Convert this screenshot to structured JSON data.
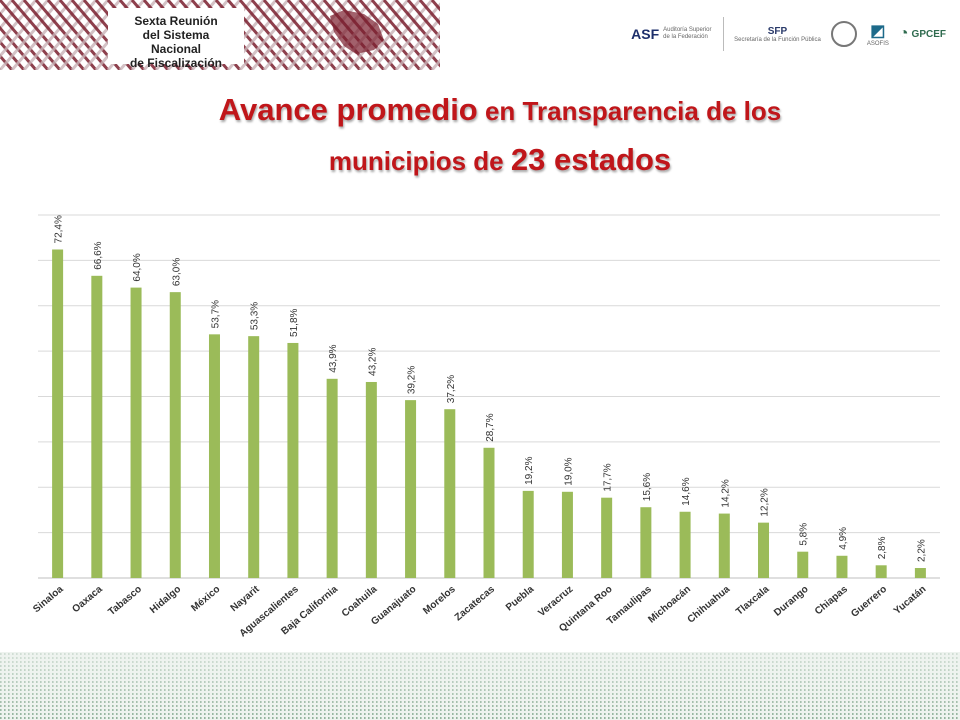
{
  "header": {
    "event_title_lines": [
      "Sexta Reunión",
      "del Sistema Nacional",
      "de Fiscalización"
    ],
    "logos": [
      {
        "name": "ASF",
        "tagline": "Auditoría Superior de la Federación"
      },
      {
        "name": "SFP",
        "tagline": "Secretaría de la Función Pública"
      },
      {
        "name": "ASOFIS"
      },
      {
        "name": "GPCEF"
      }
    ]
  },
  "title": {
    "part1": "Avance ",
    "part2": "promedio",
    "part3": " en Transparencia de los",
    "line2a": "municipios de ",
    "line2b": "23 estados"
  },
  "colors": {
    "bar": "#9bbb59",
    "title": "#c0161a",
    "pattern_dark": "#7a1e2e",
    "pattern_light": "#c9b3b8",
    "footer_dot": "#5f8f6e"
  },
  "chart_data": {
    "type": "bar",
    "categories": [
      "Sinaloa",
      "Oaxaca",
      "Tabasco",
      "Hidalgo",
      "México",
      "Nayarit",
      "Aguascalientes",
      "Baja California",
      "Coahuila",
      "Guanajuato",
      "Morelos",
      "Zacatecas",
      "Puebla",
      "Veracruz",
      "Quintana Roo",
      "Tamaulipas",
      "Michoacán",
      "Chihuahua",
      "Tlaxcala",
      "Durango",
      "Chiapas",
      "Guerrero",
      "Yucatán"
    ],
    "values": [
      72.4,
      66.6,
      64.0,
      63.0,
      53.7,
      53.3,
      51.8,
      43.9,
      43.2,
      39.2,
      37.2,
      28.7,
      19.2,
      19.0,
      17.7,
      15.6,
      14.6,
      14.2,
      12.2,
      5.8,
      4.9,
      2.8,
      2.2
    ],
    "labels": [
      "72,4%",
      "66,6%",
      "64,0%",
      "63,0%",
      "53,7%",
      "53,3%",
      "51,8%",
      "43,9%",
      "43,2%",
      "39,2%",
      "37,2%",
      "28,7%",
      "19,2%",
      "19,0%",
      "17,7%",
      "15,6%",
      "14,6%",
      "14,2%",
      "12,2%",
      "5,8%",
      "4,9%",
      "2,8%",
      "2,2%"
    ],
    "ylim": [
      0,
      80
    ],
    "grid": true,
    "xlabel": "",
    "ylabel": ""
  }
}
